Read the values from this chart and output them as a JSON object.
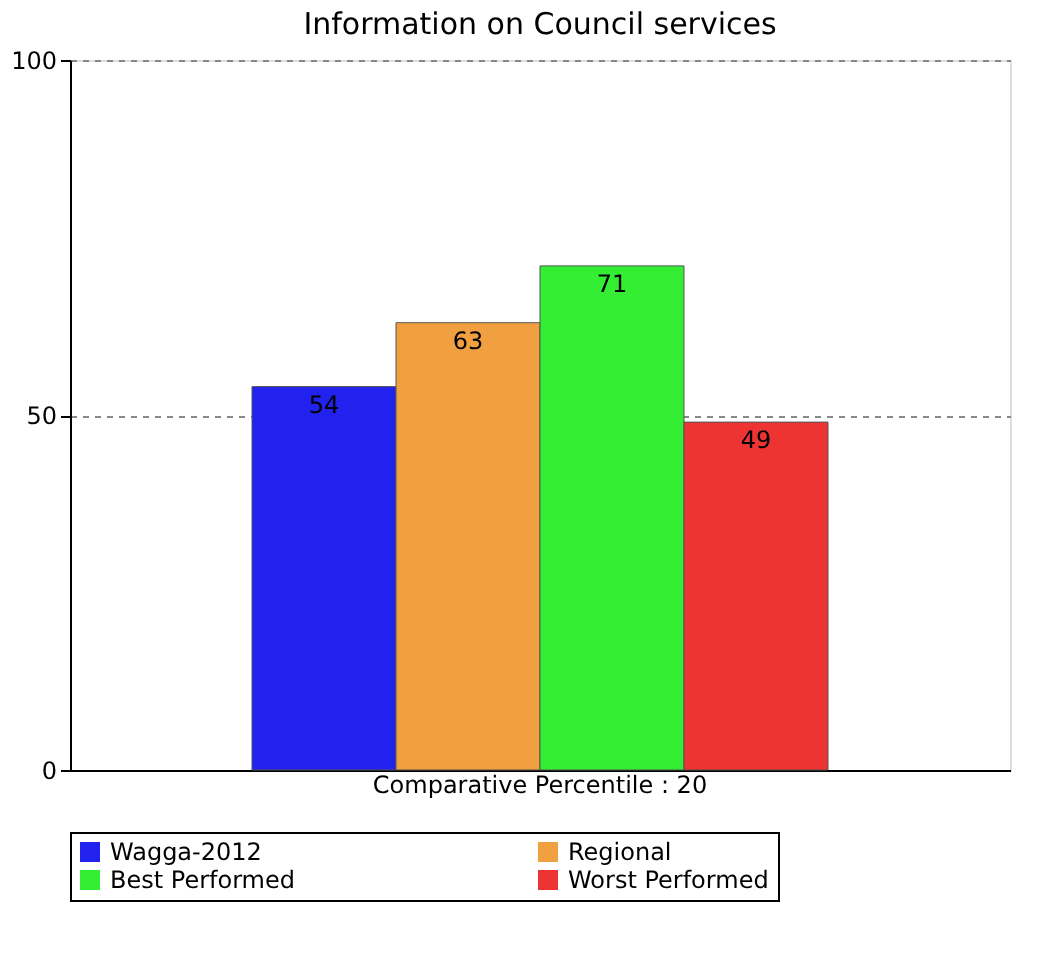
{
  "chart_data": {
    "type": "bar",
    "title": "Information on Council services",
    "categories": [
      "Comparative Percentile : 20"
    ],
    "series": [
      {
        "name": "Wagga-2012",
        "color": "#2222ee",
        "values": [
          54
        ]
      },
      {
        "name": "Regional",
        "color": "#f0a040",
        "values": [
          63
        ]
      },
      {
        "name": "Best Performed",
        "color": "#33ee33",
        "values": [
          71
        ]
      },
      {
        "name": "Worst Performed",
        "color": "#ee3333",
        "values": [
          49
        ]
      }
    ],
    "ylim": [
      0,
      100
    ],
    "yticks": [
      0,
      50,
      100
    ],
    "grid": "y",
    "legend": "bottom",
    "data_labels": true
  }
}
